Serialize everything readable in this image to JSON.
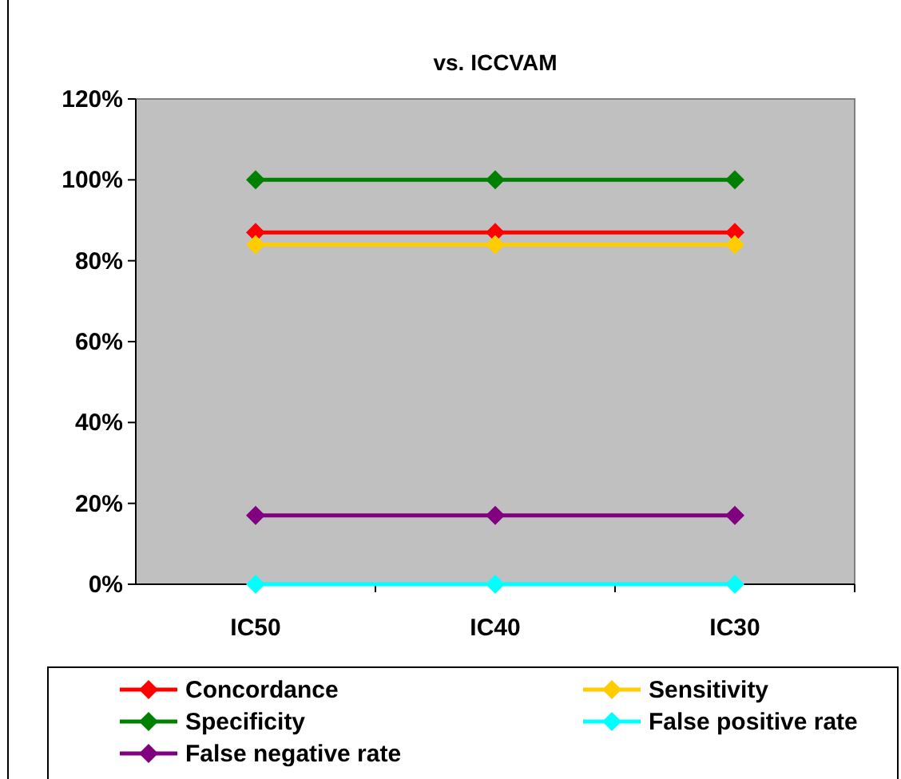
{
  "chart_data": {
    "type": "line",
    "title": "vs. ICCVAM",
    "categories": [
      "IC50",
      "IC40",
      "IC30"
    ],
    "series": [
      {
        "name": "Concordance",
        "color": "#ff0000",
        "values": [
          87,
          87,
          87
        ]
      },
      {
        "name": "Sensitivity",
        "color": "#ffcc00",
        "values": [
          84,
          84,
          84
        ]
      },
      {
        "name": "Specificity",
        "color": "#008000",
        "values": [
          100,
          100,
          100
        ]
      },
      {
        "name": "False positive rate",
        "color": "#00ffff",
        "values": [
          0,
          0,
          0
        ]
      },
      {
        "name": "False negative rate",
        "color": "#800080",
        "values": [
          17,
          17,
          17
        ]
      }
    ],
    "ylim": [
      0,
      120
    ],
    "yticks": [
      {
        "value": 0,
        "label": "0%"
      },
      {
        "value": 20,
        "label": "20%"
      },
      {
        "value": 40,
        "label": "40%"
      },
      {
        "value": 60,
        "label": "60%"
      },
      {
        "value": 80,
        "label": "80%"
      },
      {
        "value": 100,
        "label": "100%"
      },
      {
        "value": 120,
        "label": "120%"
      }
    ],
    "marker": "diamond",
    "line_style": "solid",
    "legend": "bottom",
    "grid": false
  }
}
